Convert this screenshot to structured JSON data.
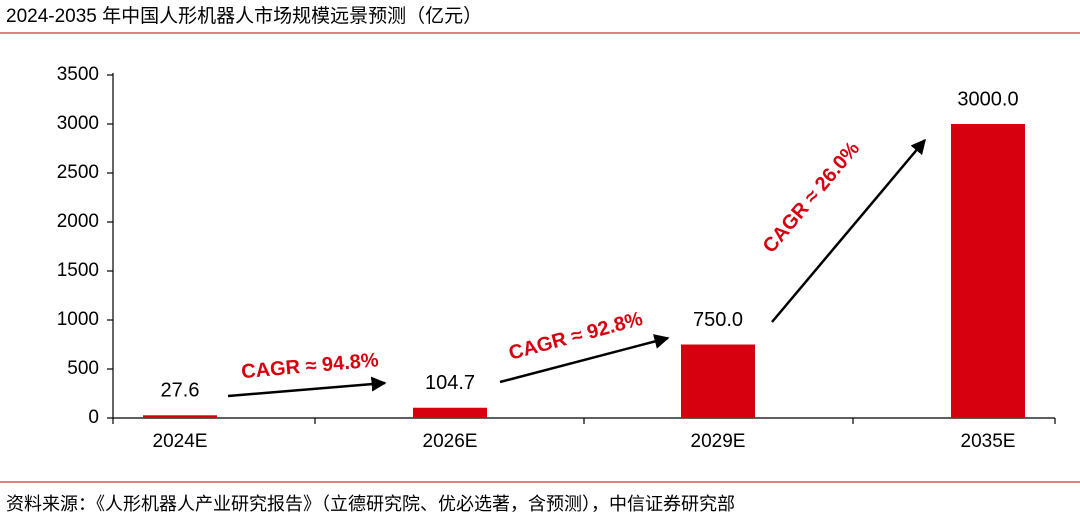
{
  "chart_data": {
    "type": "bar",
    "title": "2024-2035 年中国人形机器人市场规模远景预测（亿元）",
    "categories": [
      "2024E",
      "2026E",
      "2029E",
      "2035E"
    ],
    "values": [
      27.6,
      104.7,
      750,
      3000
    ],
    "value_labels": [
      "27.6",
      "104.7",
      "750.0",
      "3000.0"
    ],
    "color": "#d7000f",
    "ylim": [
      0,
      3500
    ],
    "yticks": [
      0,
      500,
      1000,
      1500,
      2000,
      2500,
      3000,
      3500
    ],
    "annotations": [
      "CAGR ≈ 94.8%",
      "CAGR ≈ 92.8%",
      "CAGR ≈ 26.0%"
    ],
    "source": "资料来源：《人形机器人产业研究报告》（立德研究院、优必选著，含预测），中信证券研究部"
  }
}
